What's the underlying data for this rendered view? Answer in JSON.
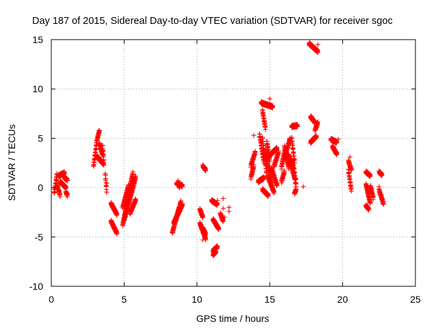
{
  "chart_data": {
    "type": "scatter",
    "title": "Day 187 of 2015, Sidereal Day-to-day VTEC variation (SDTVAR) for receiver sgoc",
    "xlabel": "GPS time / hours",
    "ylabel": "SDTVAR / TECUs",
    "xlim": [
      0,
      25
    ],
    "ylim": [
      -10,
      15
    ],
    "xticks": [
      0,
      5,
      10,
      15,
      20,
      25
    ],
    "yticks": [
      -10,
      -5,
      0,
      5,
      10,
      15
    ],
    "xtick_labels": [
      "0",
      "5",
      "10",
      "15",
      "20",
      "25"
    ],
    "ytick_labels": [
      "-10",
      "-5",
      "0",
      "5",
      "10",
      "15"
    ],
    "grid": true,
    "marker": "plus",
    "color": "#ff0000",
    "segments": [
      {
        "from": [
          0.2,
          -0.6
        ],
        "to": [
          0.4,
          1.4
        ]
      },
      {
        "from": [
          0.4,
          0.3
        ],
        "to": [
          0.6,
          -0.8
        ]
      },
      {
        "from": [
          0.5,
          1.2
        ],
        "to": [
          0.9,
          1.5
        ]
      },
      {
        "from": [
          0.6,
          0.6
        ],
        "to": [
          1.0,
          0.0
        ]
      },
      {
        "from": [
          0.9,
          1.0
        ],
        "to": [
          1.1,
          0.8
        ]
      },
      {
        "from": [
          1.0,
          -0.4
        ],
        "to": [
          1.1,
          -0.8
        ]
      },
      {
        "from": [
          2.9,
          2.2
        ],
        "to": [
          3.1,
          4.4
        ]
      },
      {
        "from": [
          3.1,
          4.6
        ],
        "to": [
          3.3,
          5.8
        ]
      },
      {
        "from": [
          3.1,
          3.2
        ],
        "to": [
          3.6,
          2.4
        ]
      },
      {
        "from": [
          3.3,
          4.5
        ],
        "to": [
          3.5,
          3.4
        ]
      },
      {
        "from": [
          3.5,
          4.4
        ],
        "to": [
          3.6,
          2.8
        ]
      },
      {
        "from": [
          3.7,
          1.5
        ],
        "to": [
          3.8,
          -0.5
        ]
      },
      {
        "from": [
          4.1,
          -1.6
        ],
        "to": [
          4.5,
          -2.7
        ]
      },
      {
        "from": [
          4.1,
          -3.4
        ],
        "to": [
          4.5,
          -4.6
        ]
      },
      {
        "from": [
          4.9,
          -3.8
        ],
        "to": [
          5.6,
          1.5
        ]
      },
      {
        "from": [
          4.9,
          -2.0
        ],
        "to": [
          5.3,
          0.2
        ]
      },
      {
        "from": [
          5.0,
          -3.3
        ],
        "to": [
          5.8,
          1.1
        ]
      },
      {
        "from": [
          5.4,
          -2.6
        ],
        "to": [
          5.8,
          -1.2
        ]
      },
      {
        "from": [
          8.3,
          -4.6
        ],
        "to": [
          8.9,
          -1.4
        ]
      },
      {
        "from": [
          8.4,
          -3.6
        ],
        "to": [
          9.0,
          -1.7
        ]
      },
      {
        "from": [
          8.6,
          -3.0
        ],
        "to": [
          8.8,
          -2.0
        ]
      },
      {
        "from": [
          8.6,
          0.4
        ],
        "to": [
          9.0,
          0.2
        ]
      },
      {
        "from": [
          8.7,
          0.6
        ],
        "to": [
          8.8,
          0.0
        ]
      },
      {
        "from": [
          10.2,
          -2.2
        ],
        "to": [
          10.4,
          -3.0
        ]
      },
      {
        "from": [
          10.2,
          -3.6
        ],
        "to": [
          10.6,
          -5.2
        ]
      },
      {
        "from": [
          10.4,
          -4.1
        ],
        "to": [
          10.6,
          -4.7
        ]
      },
      {
        "from": [
          10.4,
          2.2
        ],
        "to": [
          10.6,
          1.8
        ]
      },
      {
        "from": [
          11.0,
          -1.3
        ],
        "to": [
          11.4,
          -1.7
        ]
      },
      {
        "from": [
          11.1,
          -3.2
        ],
        "to": [
          11.5,
          -4.2
        ]
      },
      {
        "from": [
          11.1,
          -6.4
        ],
        "to": [
          11.4,
          -6.0
        ]
      },
      {
        "from": [
          11.1,
          -6.8
        ],
        "to": [
          11.3,
          -6.5
        ]
      },
      {
        "from": [
          11.6,
          -2.6
        ],
        "to": [
          11.8,
          -3.4
        ]
      },
      {
        "from": [
          13.7,
          2.2
        ],
        "to": [
          14.0,
          3.6
        ]
      },
      {
        "from": [
          13.7,
          1.0
        ],
        "to": [
          13.9,
          2.2
        ]
      },
      {
        "from": [
          14.2,
          0.6
        ],
        "to": [
          14.6,
          1.0
        ]
      },
      {
        "from": [
          14.3,
          5.4
        ],
        "to": [
          14.6,
          2.6
        ]
      },
      {
        "from": [
          14.4,
          8.6
        ],
        "to": [
          15.2,
          8.2
        ]
      },
      {
        "from": [
          14.5,
          5.0
        ],
        "to": [
          14.8,
          1.2
        ]
      },
      {
        "from": [
          14.5,
          7.8
        ],
        "to": [
          14.7,
          6.0
        ]
      },
      {
        "from": [
          14.5,
          -0.2
        ],
        "to": [
          14.9,
          -0.8
        ]
      },
      {
        "from": [
          14.7,
          3.6
        ],
        "to": [
          15.1,
          0.5
        ]
      },
      {
        "from": [
          14.8,
          4.6
        ],
        "to": [
          15.0,
          2.8
        ]
      },
      {
        "from": [
          14.9,
          1.0
        ],
        "to": [
          15.3,
          -0.5
        ]
      },
      {
        "from": [
          15.0,
          3.3
        ],
        "to": [
          15.5,
          4.0
        ]
      },
      {
        "from": [
          15.1,
          2.0
        ],
        "to": [
          15.5,
          0.2
        ]
      },
      {
        "from": [
          15.3,
          2.2
        ],
        "to": [
          15.6,
          3.6
        ]
      },
      {
        "from": [
          15.8,
          2.0
        ],
        "to": [
          16.0,
          3.6
        ]
      },
      {
        "from": [
          15.8,
          0.6
        ],
        "to": [
          16.0,
          1.6
        ]
      },
      {
        "from": [
          16.0,
          3.0
        ],
        "to": [
          16.4,
          5.0
        ]
      },
      {
        "from": [
          16.0,
          4.2
        ],
        "to": [
          16.3,
          2.0
        ]
      },
      {
        "from": [
          16.3,
          3.3
        ],
        "to": [
          16.6,
          2.0
        ]
      },
      {
        "from": [
          16.4,
          2.6
        ],
        "to": [
          16.7,
          1.0
        ]
      },
      {
        "from": [
          16.5,
          5.0
        ],
        "to": [
          16.7,
          2.6
        ]
      },
      {
        "from": [
          16.5,
          6.2
        ],
        "to": [
          16.9,
          6.3
        ]
      },
      {
        "from": [
          16.6,
          2.6
        ],
        "to": [
          16.8,
          0.2
        ]
      },
      {
        "from": [
          16.7,
          -0.6
        ],
        "to": [
          16.8,
          -0.2
        ]
      },
      {
        "from": [
          17.7,
          14.6
        ],
        "to": [
          18.3,
          13.8
        ]
      },
      {
        "from": [
          17.8,
          7.2
        ],
        "to": [
          18.1,
          6.6
        ]
      },
      {
        "from": [
          17.8,
          4.6
        ],
        "to": [
          18.2,
          5.2
        ]
      },
      {
        "from": [
          18.1,
          5.8
        ],
        "to": [
          18.3,
          6.6
        ]
      },
      {
        "from": [
          19.2,
          4.9
        ],
        "to": [
          19.6,
          4.6
        ]
      },
      {
        "from": [
          19.3,
          4.2
        ],
        "to": [
          19.6,
          3.4
        ]
      },
      {
        "from": [
          20.4,
          2.7
        ],
        "to": [
          20.6,
          1.8
        ]
      },
      {
        "from": [
          20.4,
          1.8
        ],
        "to": [
          20.6,
          -0.3
        ]
      },
      {
        "from": [
          21.6,
          1.6
        ],
        "to": [
          21.9,
          1.2
        ]
      },
      {
        "from": [
          21.6,
          0.4
        ],
        "to": [
          21.9,
          -1.6
        ]
      },
      {
        "from": [
          21.6,
          -1.8
        ],
        "to": [
          21.8,
          -2.2
        ]
      },
      {
        "from": [
          21.9,
          0.2
        ],
        "to": [
          22.1,
          -1.0
        ]
      },
      {
        "from": [
          22.5,
          1.6
        ],
        "to": [
          22.7,
          1.3
        ]
      },
      {
        "from": [
          22.5,
          -0.2
        ],
        "to": [
          22.8,
          -1.6
        ]
      }
    ],
    "isolated_points": [
      [
        1.1,
        -0.7
      ],
      [
        3.8,
        0.4
      ],
      [
        10.4,
        -5.3
      ],
      [
        11.4,
        -1.3
      ],
      [
        11.8,
        -1.1
      ],
      [
        11.8,
        -2.1
      ],
      [
        11.9,
        -3.0
      ],
      [
        12.2,
        -2.0
      ],
      [
        12.2,
        -2.4
      ],
      [
        13.9,
        5.3
      ],
      [
        15.0,
        9.0
      ],
      [
        16.8,
        0.9
      ],
      [
        17.3,
        0.1
      ],
      [
        18.3,
        14.5
      ],
      [
        18.3,
        13.7
      ],
      [
        19.7,
        4.9
      ],
      [
        20.5,
        3.1
      ],
      [
        22.1,
        -1.2
      ],
      [
        22.5,
        0.1
      ]
    ]
  }
}
